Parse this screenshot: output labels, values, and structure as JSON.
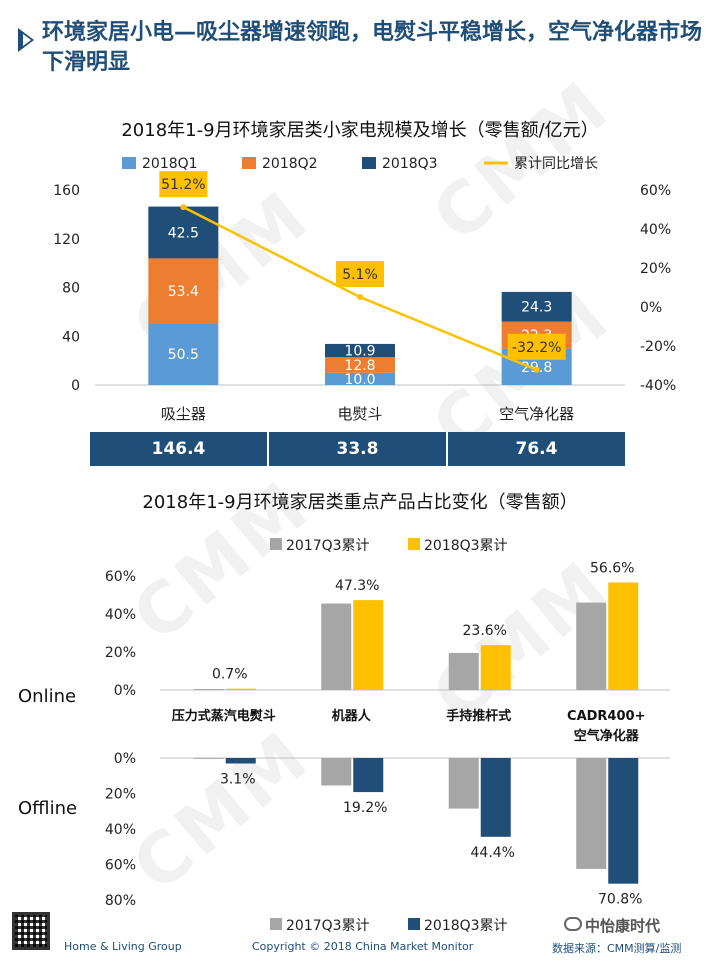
{
  "page": {
    "title": "环境家居小电—吸尘器增速领跑，电熨斗平稳增长，空气净化器市场下滑明显",
    "watermark": "CMM",
    "footer_left": "Home  & Living Group",
    "footer_center": "Copyright © 2018 China Market Monitor",
    "footer_right": "数据来源：CMM测算/监测",
    "brand": "中怡康时代"
  },
  "chart_data": [
    {
      "type": "bar",
      "stacked": true,
      "title": "2018年1-9月环境家居类小家电规模及增长（零售额/亿元）",
      "categories": [
        "吸尘器",
        "电熨斗",
        "空气净化器"
      ],
      "series": [
        {
          "name": "2018Q1",
          "color": "#5b9bd5",
          "values": [
            50.5,
            10.0,
            29.8
          ]
        },
        {
          "name": "2018Q2",
          "color": "#ed7d31",
          "values": [
            53.4,
            12.8,
            22.3
          ]
        },
        {
          "name": "2018Q3",
          "color": "#1f4e79",
          "values": [
            42.5,
            10.9,
            24.3
          ]
        }
      ],
      "line_series": {
        "name": "累计同比增长",
        "color": "#ffc000",
        "values": [
          51.2,
          5.1,
          -32.2
        ],
        "labels": [
          "51.2%",
          "5.1%",
          "-32.2%"
        ]
      },
      "ylim": [
        0,
        160
      ],
      "yticks": [
        "0",
        "40",
        "80",
        "120",
        "160"
      ],
      "y2lim": [
        -40,
        60
      ],
      "y2ticks": [
        "-40%",
        "-20%",
        "0%",
        "20%",
        "40%",
        "60%"
      ],
      "totals": [
        "146.4",
        "33.8",
        "76.4"
      ],
      "legend": "top"
    },
    {
      "type": "bar",
      "title": "2018年1-9月环境家居类重点产品占比变化（零售额）",
      "categories": [
        "压力式蒸汽电熨斗",
        "机器人",
        "手持推杆式",
        "CADR400+\n空气净化器"
      ],
      "online": {
        "label": "Online",
        "series": [
          {
            "name": "2017Q3累计",
            "color": "#a6a6a6",
            "values": [
              0.5,
              45.5,
              19.5,
              46.0
            ]
          },
          {
            "name": "2018Q3累计",
            "color": "#ffc000",
            "values": [
              0.7,
              47.3,
              23.6,
              56.6
            ]
          }
        ],
        "labels": [
          "0.7%",
          "47.3%",
          "23.6%",
          "56.6%"
        ],
        "ylim": [
          0,
          60
        ],
        "yticks": [
          "0%",
          "20%",
          "40%",
          "60%"
        ]
      },
      "offline": {
        "label": "Offline",
        "series": [
          {
            "name": "2017Q3累计",
            "color": "#a6a6a6",
            "values": [
              0.5,
              15.5,
              28.5,
              62.5
            ]
          },
          {
            "name": "2018Q3累计",
            "color": "#1f4e79",
            "values": [
              3.1,
              19.2,
              44.4,
              70.8
            ]
          }
        ],
        "labels": [
          "3.1%",
          "19.2%",
          "44.4%",
          "70.8%"
        ],
        "ylim": [
          0,
          80
        ],
        "yticks": [
          "0%",
          "20%",
          "40%",
          "60%",
          "80%"
        ]
      },
      "legend": "top"
    }
  ]
}
